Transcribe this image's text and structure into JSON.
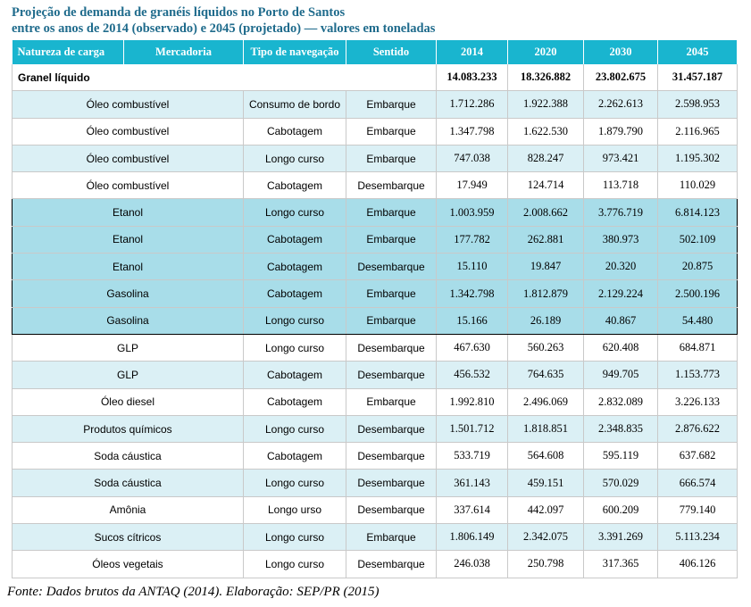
{
  "title": {
    "line1": "Projeção de demanda de granéis líquidos no Porto de Santos",
    "line2": "entre os anos de 2014 (observado) e 2045 (projetado) — valores em toneladas"
  },
  "table": {
    "headers": [
      "Natureza de carga",
      "Mercadoria",
      "Tipo de navegação",
      "Sentido",
      "2014",
      "2020",
      "2030",
      "2045"
    ],
    "total": {
      "label": "Granel líquido",
      "values": [
        "14.083.233",
        "18.326.882",
        "23.802.675",
        "31.457.187"
      ]
    },
    "rows": [
      {
        "mercadoria": "Óleo combustível",
        "tipo": "Consumo de bordo",
        "sentido": "Embarque",
        "values": [
          "1.712.286",
          "1.922.388",
          "2.262.613",
          "2.598.953"
        ]
      },
      {
        "mercadoria": "Óleo combustível",
        "tipo": "Cabotagem",
        "sentido": "Embarque",
        "values": [
          "1.347.798",
          "1.622.530",
          "1.879.790",
          "2.116.965"
        ]
      },
      {
        "mercadoria": "Óleo combustível",
        "tipo": "Longo curso",
        "sentido": "Embarque",
        "values": [
          "747.038",
          "828.247",
          "973.421",
          "1.195.302"
        ]
      },
      {
        "mercadoria": "Óleo combustível",
        "tipo": "Cabotagem",
        "sentido": "Desembarque",
        "values": [
          "17.949",
          "124.714",
          "113.718",
          "110.029"
        ]
      },
      {
        "mercadoria": "Etanol",
        "tipo": "Longo curso",
        "sentido": "Embarque",
        "values": [
          "1.003.959",
          "2.008.662",
          "3.776.719",
          "6.814.123"
        ]
      },
      {
        "mercadoria": "Etanol",
        "tipo": "Cabotagem",
        "sentido": "Embarque",
        "values": [
          "177.782",
          "262.881",
          "380.973",
          "502.109"
        ]
      },
      {
        "mercadoria": "Etanol",
        "tipo": "Cabotagem",
        "sentido": "Desembarque",
        "values": [
          "15.110",
          "19.847",
          "20.320",
          "20.875"
        ]
      },
      {
        "mercadoria": "Gasolina",
        "tipo": "Cabotagem",
        "sentido": "Embarque",
        "values": [
          "1.342.798",
          "1.812.879",
          "2.129.224",
          "2.500.196"
        ]
      },
      {
        "mercadoria": "Gasolina",
        "tipo": "Longo curso",
        "sentido": "Embarque",
        "values": [
          "15.166",
          "26.189",
          "40.867",
          "54.480"
        ]
      },
      {
        "mercadoria": "GLP",
        "tipo": "Longo curso",
        "sentido": "Desembarque",
        "values": [
          "467.630",
          "560.263",
          "620.408",
          "684.871"
        ]
      },
      {
        "mercadoria": "GLP",
        "tipo": "Cabotagem",
        "sentido": "Desembarque",
        "values": [
          "456.532",
          "764.635",
          "949.705",
          "1.153.773"
        ]
      },
      {
        "mercadoria": "Óleo diesel",
        "tipo": "Cabotagem",
        "sentido": "Embarque",
        "values": [
          "1.992.810",
          "2.496.069",
          "2.832.089",
          "3.226.133"
        ]
      },
      {
        "mercadoria": "Produtos químicos",
        "tipo": "Longo curso",
        "sentido": "Desembarque",
        "values": [
          "1.501.712",
          "1.818.851",
          "2.348.835",
          "2.876.622"
        ]
      },
      {
        "mercadoria": "Soda cáustica",
        "tipo": "Cabotagem",
        "sentido": "Desembarque",
        "values": [
          "533.719",
          "564.608",
          "595.119",
          "637.682"
        ]
      },
      {
        "mercadoria": "Soda cáustica",
        "tipo": "Longo curso",
        "sentido": "Desembarque",
        "values": [
          "361.143",
          "459.151",
          "570.029",
          "666.574"
        ]
      },
      {
        "mercadoria": "Amônia",
        "tipo": "Longo urso",
        "sentido": "Desembarque",
        "values": [
          "337.614",
          "442.097",
          "600.209",
          "779.140"
        ]
      },
      {
        "mercadoria": "Sucos cítricos",
        "tipo": "Longo curso",
        "sentido": "Embarque",
        "values": [
          "1.806.149",
          "2.342.075",
          "3.391.269",
          "5.113.234"
        ]
      },
      {
        "mercadoria": "Óleos vegetais",
        "tipo": "Longo curso",
        "sentido": "Desembarque",
        "values": [
          "246.038",
          "250.798",
          "317.365",
          "406.126"
        ]
      }
    ]
  },
  "footer": {
    "source": "Fonte: Dados brutos da ANTAQ (2014). Elaboração: SEP/PR (2015)"
  },
  "colors": {
    "title": "#1f6b8c",
    "header_bg": "#19b5cf",
    "row_light": "#dbf0f5",
    "row_highlight": "#a8dde9"
  }
}
